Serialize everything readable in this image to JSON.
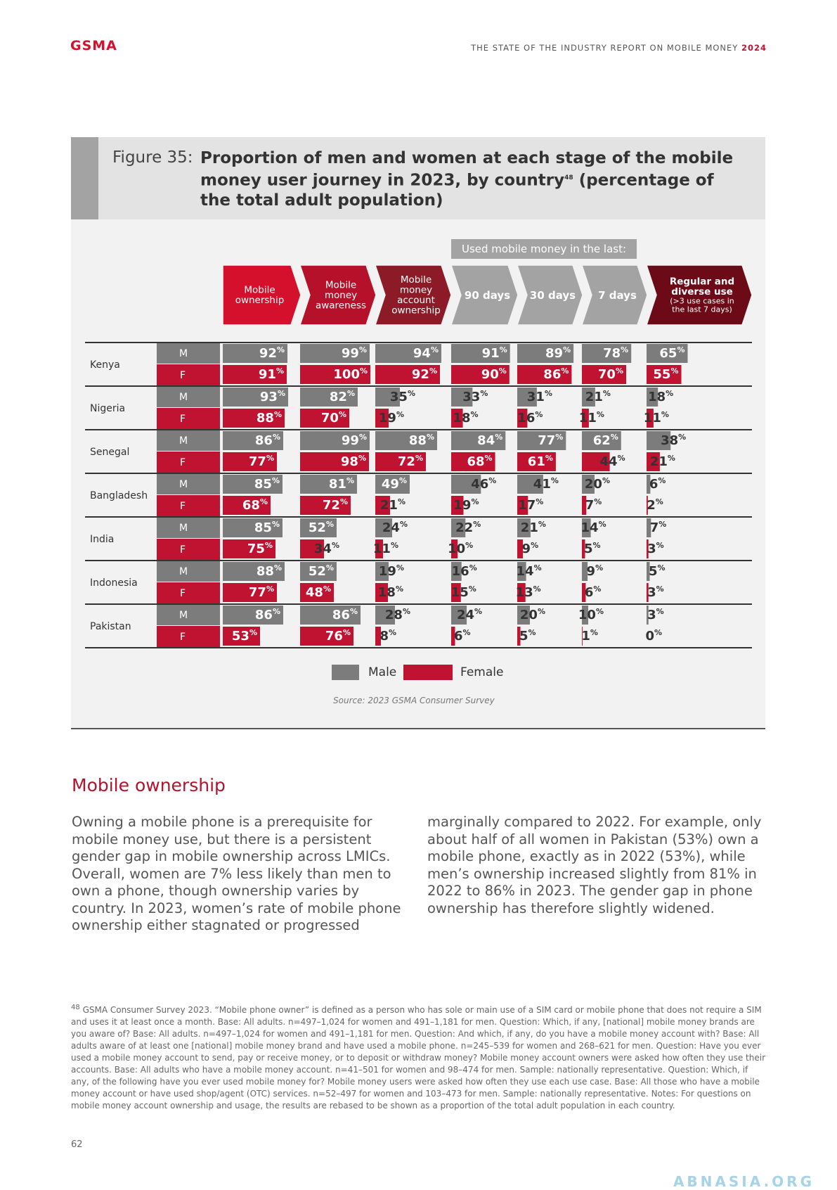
{
  "header": {
    "logo": "GSMA",
    "report_title": "THE STATE OF THE INDUSTRY REPORT ON MOBILE MONEY",
    "report_year": "2024"
  },
  "figure": {
    "label": "Figure 35:",
    "title": "Proportion of men and women at each stage of the mobile money user journey in 2023, by country",
    "footnote_ref": "48",
    "title_suffix": "(percentage of the total adult population)",
    "used_header": "Used mobile money in the last:",
    "source": "Source: 2023 GSMA Consumer Survey"
  },
  "colors": {
    "male": "#7c7c7c",
    "female": "#c01231",
    "stage1": "#d4102c",
    "stage2": "#b5112a",
    "stage3": "#8c1b27",
    "stage_gray": "#a3a3a3",
    "stage_regular": "#6d0a18",
    "accent": "#b3122c"
  },
  "chart_data": {
    "type": "bar",
    "stages": [
      "Mobile ownership",
      "Mobile money awareness",
      "Mobile money account ownership",
      "90 days",
      "30 days",
      "7 days",
      "Regular and diverse use"
    ],
    "stage_lines": [
      [
        "Mobile",
        "ownership"
      ],
      [
        "Mobile",
        "money",
        "awareness"
      ],
      [
        "Mobile",
        "money",
        "account",
        "ownership"
      ],
      [
        "90 days"
      ],
      [
        "30 days"
      ],
      [
        "7 days"
      ],
      [
        "Regular and",
        "diverse use"
      ]
    ],
    "stage_subtitle": [
      "(>3 use cases in",
      "the last 7 days)"
    ],
    "unit": "%",
    "legend": [
      "Male",
      "Female"
    ],
    "countries": [
      {
        "name": "Kenya",
        "male": [
          92,
          99,
          94,
          91,
          89,
          78,
          65
        ],
        "female": [
          91,
          100,
          92,
          90,
          86,
          70,
          55
        ]
      },
      {
        "name": "Nigeria",
        "male": [
          93,
          82,
          35,
          33,
          31,
          21,
          18
        ],
        "female": [
          88,
          70,
          19,
          18,
          16,
          11,
          11
        ]
      },
      {
        "name": "Senegal",
        "male": [
          86,
          99,
          88,
          84,
          77,
          62,
          38
        ],
        "female": [
          77,
          98,
          72,
          68,
          61,
          44,
          21
        ]
      },
      {
        "name": "Bangladesh",
        "male": [
          85,
          81,
          49,
          46,
          41,
          20,
          6
        ],
        "female": [
          68,
          72,
          21,
          19,
          17,
          7,
          2
        ]
      },
      {
        "name": "India",
        "male": [
          85,
          52,
          24,
          22,
          21,
          14,
          7
        ],
        "female": [
          75,
          34,
          11,
          10,
          9,
          5,
          3
        ]
      },
      {
        "name": "Indonesia",
        "male": [
          88,
          52,
          19,
          16,
          14,
          9,
          5
        ],
        "female": [
          77,
          48,
          18,
          15,
          13,
          6,
          3
        ]
      },
      {
        "name": "Pakistan",
        "male": [
          86,
          86,
          28,
          24,
          20,
          10,
          3
        ],
        "female": [
          53,
          76,
          8,
          6,
          5,
          1,
          0
        ]
      }
    ],
    "row_labels": [
      "M",
      "F"
    ]
  },
  "section": {
    "heading": "Mobile ownership",
    "left_text": "Owning a mobile phone is a prerequisite for mobile money use, but there is a persistent gender gap in mobile ownership across LMICs. Overall, women are 7% less likely than men to own a phone, though ownership varies by country. In 2023, women’s rate of mobile phone ownership either stagnated or progressed",
    "right_text": "marginally compared to 2022. For example, only about half of all women in Pakistan (53%) own a mobile phone, exactly as in 2022 (53%), while men’s ownership increased slightly from 81% in 2022 to 86% in 2023. The gender gap in phone ownership has therefore slightly widened."
  },
  "footnote": {
    "number": "48",
    "text": "GSMA Consumer Survey 2023. “Mobile phone owner” is defined as a person who has sole or main use of a SIM card or mobile phone that does not require a SIM and uses it at least once a month. Base: All adults. n=497–1,024 for women and 491–1,181 for men. Question: Which, if any, [national] mobile money brands are you aware of? Base: All adults. n=497–1,024 for women and 491–1,181 for men. Question: And which, if any, do you have a mobile money account with? Base: All adults aware of at least one [national] mobile money brand and have used a mobile phone. n=245–539 for women and 268–621 for men. Question: Have you ever used a mobile money account to send, pay or receive money, or to deposit or withdraw money? Mobile money account owners were asked how often they use their accounts. Base: All adults who have a mobile money account. n=41–501 for women and 98–474 for men. Sample: nationally representative. Question: Which, if any, of the following have you ever used mobile money for? Mobile money users were asked how often they use each use case. Base: All those who have a mobile money account or have used shop/agent (OTC) services. n=52–497 for women and 103–473 for men. Sample: nationally representative. Notes: For questions on mobile money account ownership and usage, the results are rebased to be shown as a proportion of the total adult population in each country."
  },
  "page_number": "62",
  "watermark": "ABNASIA.ORG"
}
